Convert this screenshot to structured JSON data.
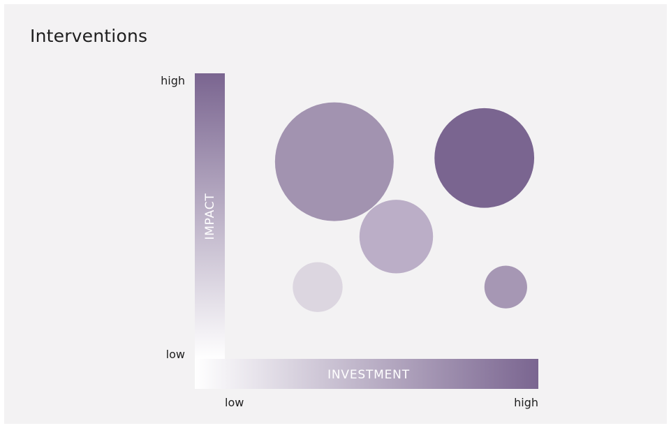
{
  "colors": {
    "background": "#f3f2f3",
    "accent": "#7a6590",
    "text": "#1e1e1e"
  },
  "chart_data": {
    "type": "scatter",
    "title": "Interventions",
    "xlabel": "INVESTMENT",
    "ylabel": "IMPACT",
    "x_tick_labels": {
      "low": "low",
      "high": "high"
    },
    "y_tick_labels": {
      "low": "low",
      "high": "high"
    },
    "xlim": [
      0,
      1
    ],
    "ylim": [
      0,
      1
    ],
    "grid": false,
    "points": [
      {
        "x": 0.17,
        "y": 0.13,
        "size": 0.42,
        "color": "#dcd6e0"
      },
      {
        "x": 0.24,
        "y": 0.8,
        "size": 1.0,
        "color": "#a293b0"
      },
      {
        "x": 0.5,
        "y": 0.4,
        "size": 0.62,
        "color": "#bbaec7"
      },
      {
        "x": 0.87,
        "y": 0.82,
        "size": 0.84,
        "color": "#7a6590"
      },
      {
        "x": 0.96,
        "y": 0.13,
        "size": 0.36,
        "color": "#a697b4"
      }
    ]
  }
}
